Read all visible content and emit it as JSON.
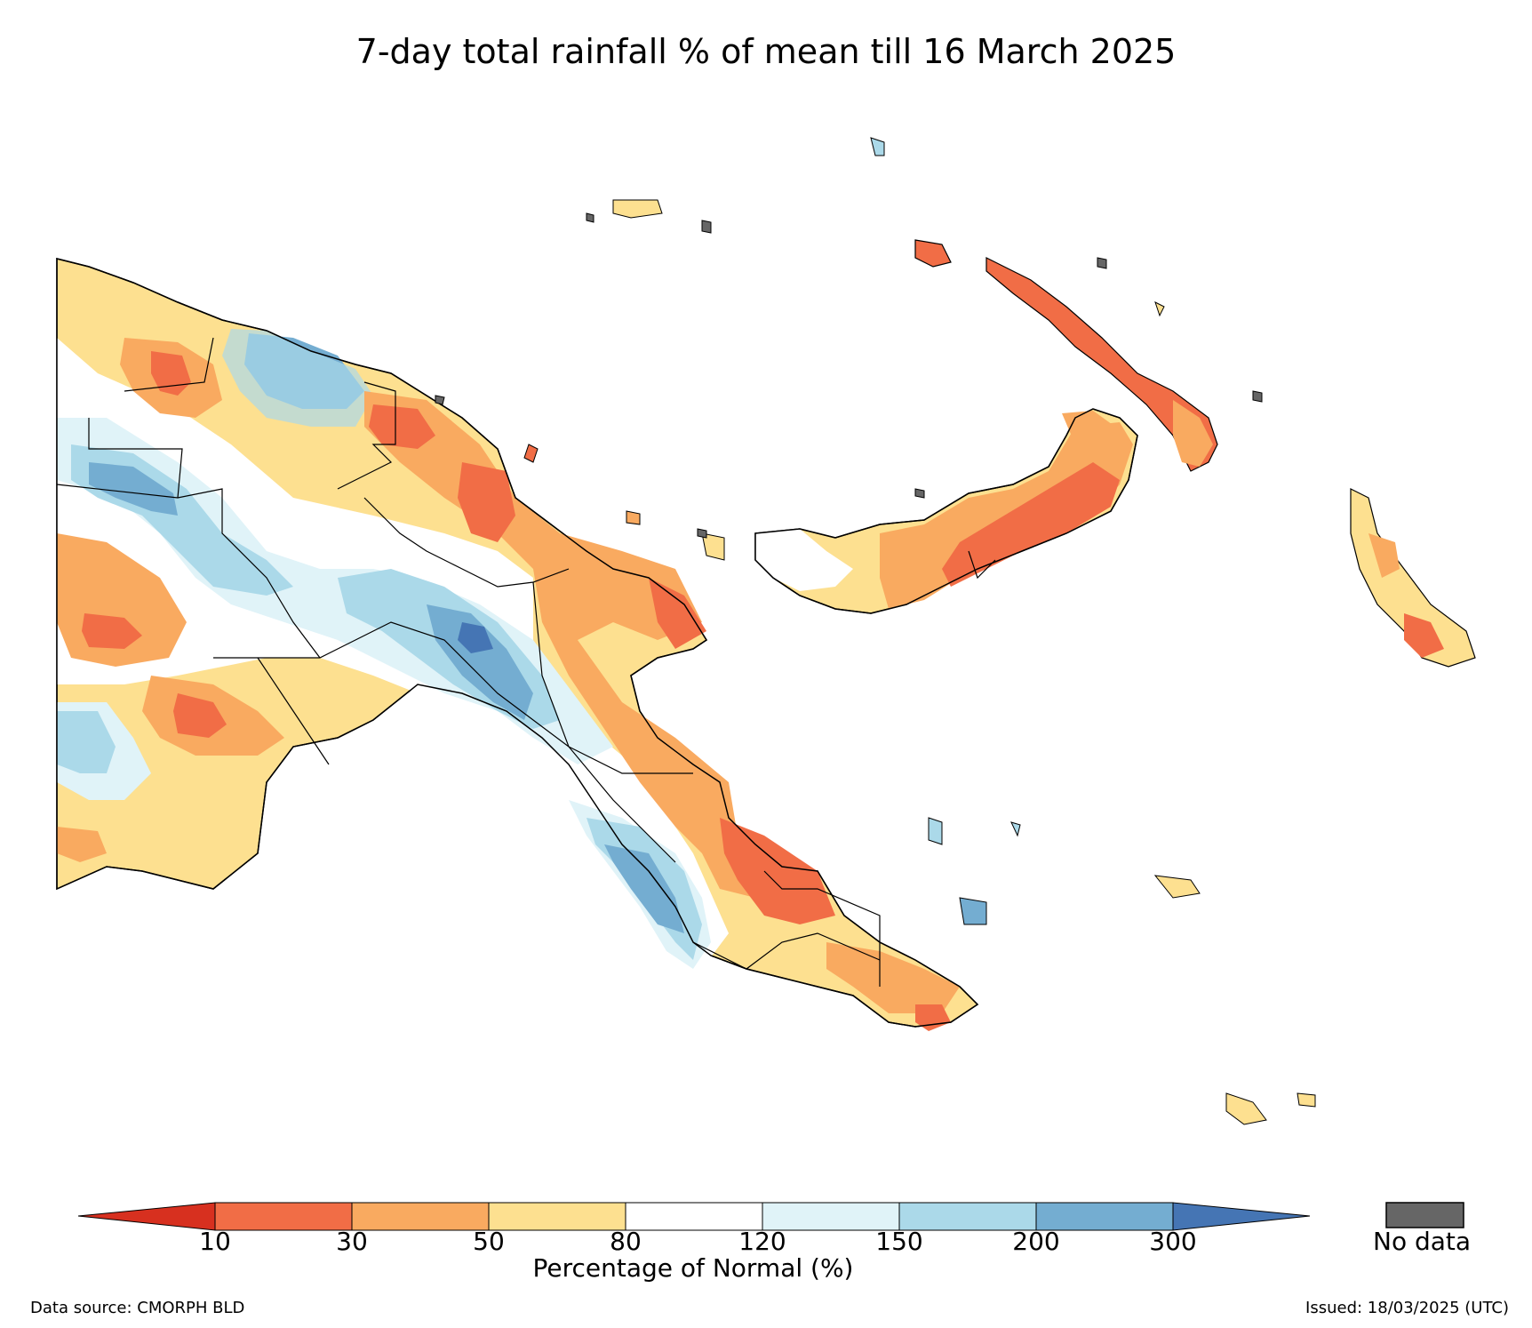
{
  "title": "7-day total rainfall % of mean till 16 March 2025",
  "legend": {
    "label": "Percentage of Normal (%)",
    "ticks": [
      "10",
      "30",
      "50",
      "80",
      "120",
      "150",
      "200",
      "300"
    ],
    "bins": [
      {
        "range": "<10",
        "color": "#d7301f"
      },
      {
        "range": "10-30",
        "color": "#f16d46"
      },
      {
        "range": "30-50",
        "color": "#f9aa60"
      },
      {
        "range": "50-80",
        "color": "#fde090"
      },
      {
        "range": "80-120",
        "color": "#ffffff"
      },
      {
        "range": "120-150",
        "color": "#e0f3f8"
      },
      {
        "range": "150-200",
        "color": "#abd9e9"
      },
      {
        "range": "200-300",
        "color": "#74add1"
      },
      {
        "range": ">300",
        "color": "#4575b4"
      }
    ],
    "no_data_label": "No data",
    "no_data_color": "#666666"
  },
  "footer": {
    "source": "Data source: CMORPH BLD",
    "issued": "Issued: 18/03/2025 (UTC)"
  }
}
